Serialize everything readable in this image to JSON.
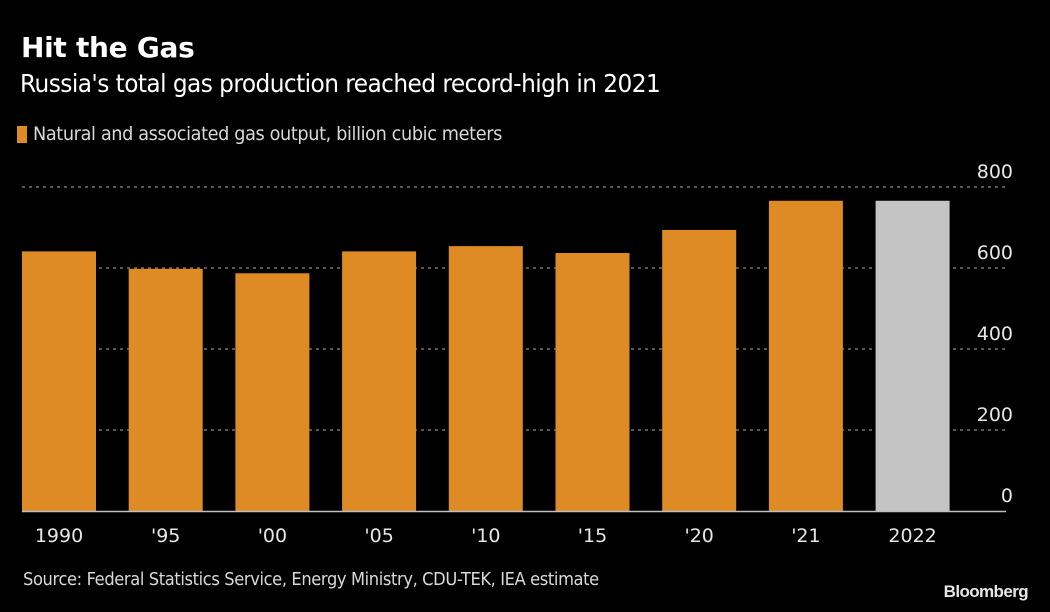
{
  "chart_data": {
    "type": "bar",
    "title": "Hit the Gas",
    "subtitle": "Russia's total gas production reached record-high in 2021",
    "legend": [
      {
        "label": "Natural and associated gas output, billion cubic meters",
        "color": "#de8b25"
      }
    ],
    "legend_placement": "top-left",
    "categories": [
      "1990",
      "'95",
      "'00",
      "'05",
      "'10",
      "'15",
      "'20",
      "'21",
      "2022"
    ],
    "values": [
      641,
      598,
      587,
      641,
      654,
      637,
      694,
      766,
      766
    ],
    "bar_colors": [
      "#de8b25",
      "#de8b25",
      "#de8b25",
      "#de8b25",
      "#de8b25",
      "#de8b25",
      "#de8b25",
      "#de8b25",
      "#c4c4c4"
    ],
    "estimate_categories": [
      "2022"
    ],
    "xlabel": "",
    "ylabel": "",
    "ylim": [
      0,
      800
    ],
    "yticks": [
      0,
      200,
      400,
      600,
      800
    ],
    "ytick_labels": [
      "0",
      "200",
      "400",
      "600",
      "800"
    ],
    "y_axis_side": "right",
    "grid": true,
    "grid_style": "dotted"
  },
  "footer": {
    "source": "Source: Federal Statistics Service, Energy Ministry, CDU-TEK, IEA estimate",
    "brand": "Bloomberg"
  },
  "colors": {
    "background": "#000000",
    "primary_bar": "#de8b25",
    "estimate_bar": "#c4c4c4",
    "gridline": "#8a8a8a",
    "text": "#e6e6e6"
  }
}
